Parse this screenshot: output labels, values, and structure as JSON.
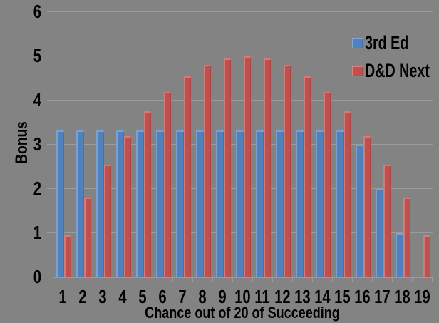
{
  "chart_data": {
    "type": "bar",
    "title": "",
    "xlabel": "Chance out of 20 of Succeeding",
    "ylabel": "Bonus",
    "categories": [
      "1",
      "2",
      "3",
      "4",
      "5",
      "6",
      "7",
      "8",
      "9",
      "10",
      "11",
      "12",
      "13",
      "14",
      "15",
      "16",
      "17",
      "18",
      "19"
    ],
    "series": [
      {
        "name": "3rd Ed",
        "color": "#4F81BD",
        "values": [
          3.33,
          3.33,
          3.33,
          3.33,
          3.33,
          3.33,
          3.33,
          3.33,
          3.33,
          3.33,
          3.33,
          3.33,
          3.33,
          3.33,
          3.33,
          3.0,
          2.0,
          1.0,
          0
        ]
      },
      {
        "name": "D&D Next",
        "color": "#C0504D",
        "values": [
          0.95,
          1.8,
          2.55,
          3.2,
          3.75,
          4.2,
          4.55,
          4.8,
          4.95,
          5.0,
          4.95,
          4.8,
          4.55,
          4.2,
          3.75,
          3.2,
          2.55,
          1.8,
          0.95
        ]
      }
    ],
    "ylim": [
      0,
      6
    ],
    "yticks": [
      0,
      1,
      2,
      3,
      4,
      5,
      6
    ],
    "grid": true,
    "legend_position": "inside-top-right",
    "colors": {
      "background": "#838383",
      "gridline": "#9B9B9B",
      "axis": "#9B9B9B",
      "text": "#000000"
    }
  }
}
